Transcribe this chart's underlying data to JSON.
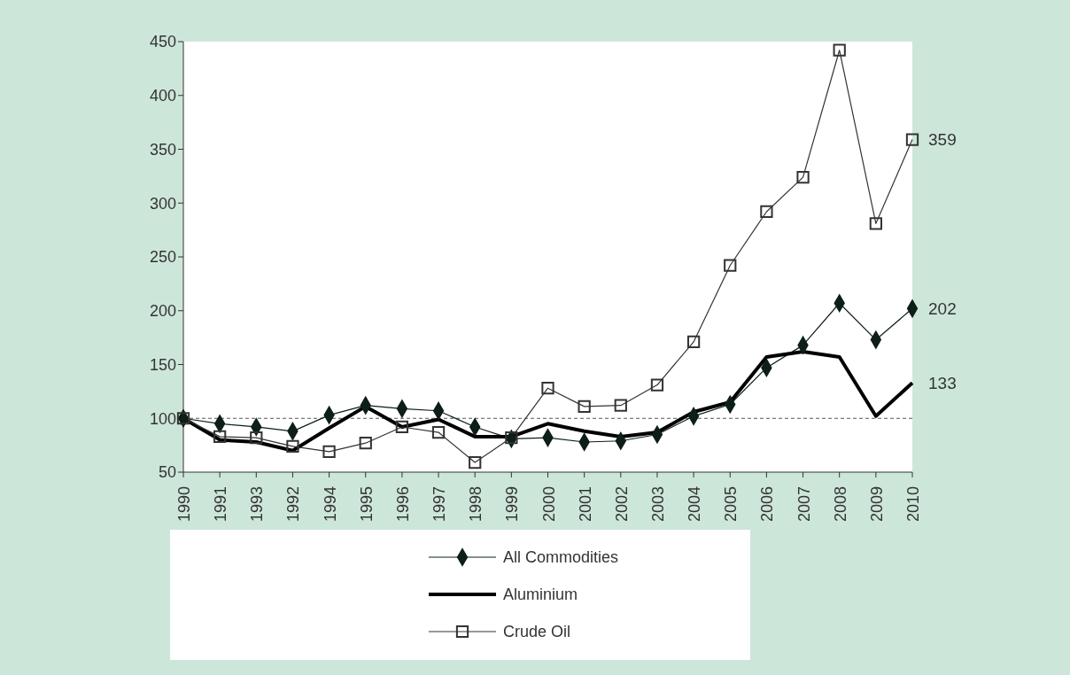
{
  "chart_data": {
    "type": "line",
    "categories": [
      "1990",
      "1991",
      "1993",
      "1992",
      "1994",
      "1995",
      "1996",
      "1997",
      "1998",
      "1999",
      "2000",
      "2001",
      "2002",
      "2003",
      "2004",
      "2005",
      "2006",
      "2007",
      "2008",
      "2009",
      "2010"
    ],
    "series": [
      {
        "name": "All Commodities",
        "color": "#0d1f17",
        "marker": "diamond",
        "values": [
          100,
          95,
          92,
          88,
          103,
          112,
          109,
          107,
          92,
          81,
          82,
          78,
          79,
          85,
          102,
          113,
          147,
          168,
          207,
          173,
          202
        ]
      },
      {
        "name": "Aluminium",
        "color": "#000000",
        "marker": "none",
        "values": [
          100,
          80,
          78,
          70,
          91,
          111,
          92,
          99,
          83,
          83,
          95,
          88,
          83,
          87,
          106,
          115,
          157,
          162,
          157,
          102,
          133
        ]
      },
      {
        "name": "Crude Oil",
        "color": "#333333",
        "marker": "square",
        "values": [
          100,
          83,
          82,
          74,
          69,
          77,
          92,
          87,
          59,
          82,
          128,
          111,
          112,
          131,
          171,
          242,
          292,
          324,
          442,
          281,
          359
        ]
      }
    ],
    "ylim": [
      50,
      450
    ],
    "yticks": [
      50,
      100,
      150,
      200,
      250,
      300,
      350,
      400,
      450
    ],
    "grid": false,
    "legend": "bottom",
    "line_style": "solid",
    "ref_lines": [
      {
        "axis": "y",
        "value": 100,
        "color": "#555555",
        "line_style": "dashed"
      }
    ],
    "annotations": [
      {
        "text": "359",
        "x": "2010",
        "y": 359
      },
      {
        "text": "202",
        "x": "2010",
        "y": 202
      },
      {
        "text": "133",
        "x": "2010",
        "y": 133
      }
    ]
  }
}
